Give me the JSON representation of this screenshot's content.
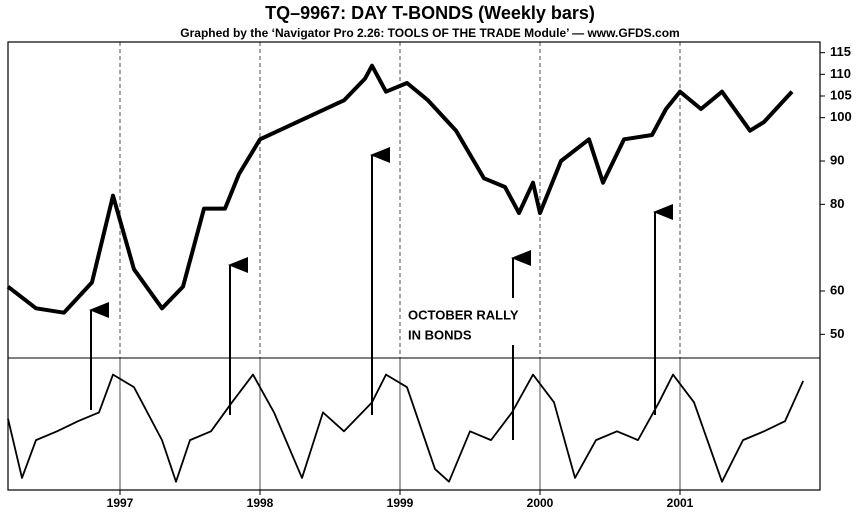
{
  "chart_data": {
    "type": "line",
    "title": "TQ–9967: DAY T-BONDS (Weekly bars)",
    "subtitle": "Graphed by the ‘Navigator Pro 2.26: TOOLS OF THE TRADE Module’ — www.GFDS.com",
    "annotation": [
      "OCTOBER RALLY",
      "IN BONDS"
    ],
    "xlim": [
      1996.2,
      2002.0
    ],
    "xticks": [
      1997,
      1998,
      1999,
      2000,
      2001
    ],
    "ylim": [
      45,
      117
    ],
    "yticks": [
      115,
      110,
      105,
      100,
      90,
      80,
      60,
      50
    ],
    "y2lim": [
      0,
      100
    ],
    "grid": true,
    "series": [
      {
        "color": "#000000",
        "x": [
          1996.2,
          1996.4,
          1996.6,
          1996.8,
          1996.95,
          1997.1,
          1997.3,
          1997.45,
          1997.6,
          1997.75,
          1997.85,
          1998.0,
          1998.2,
          1998.4,
          1998.6,
          1998.75,
          1998.8,
          1998.9,
          1999.05,
          1999.2,
          1999.4,
          1999.6,
          1999.75,
          1999.85,
          1999.95,
          2000.0,
          2000.15,
          2000.35,
          2000.45,
          2000.6,
          2000.8,
          2000.9,
          2001.0,
          2001.15,
          2001.3,
          2001.5,
          2001.6,
          2001.8
        ],
        "values": [
          61,
          56,
          55,
          62,
          82,
          65,
          56,
          61,
          79,
          79,
          87,
          95,
          98,
          101,
          104,
          109,
          112,
          106,
          108,
          104,
          97,
          86,
          84,
          78,
          85,
          78,
          90,
          95,
          85,
          95,
          96,
          102,
          106,
          102,
          106,
          97,
          99,
          106
        ]
      },
      {
        "color": "#000000",
        "axis": "y2",
        "x": [
          1996.2,
          1996.3,
          1996.4,
          1996.55,
          1996.7,
          1996.85,
          1996.95,
          1997.1,
          1997.3,
          1997.4,
          1997.5,
          1997.65,
          1997.8,
          1997.95,
          1998.1,
          1998.3,
          1998.45,
          1998.6,
          1998.8,
          1998.9,
          1999.05,
          1999.25,
          1999.35,
          1999.5,
          1999.65,
          1999.8,
          1999.95,
          2000.1,
          2000.25,
          2000.4,
          2000.55,
          2000.7,
          2000.85,
          2000.95,
          2001.1,
          2001.3,
          2001.45,
          2001.6,
          2001.75,
          2001.88
        ],
        "values": [
          55,
          8,
          38,
          45,
          53,
          60,
          90,
          80,
          38,
          5,
          38,
          45,
          68,
          90,
          60,
          8,
          60,
          45,
          68,
          90,
          80,
          15,
          5,
          45,
          38,
          60,
          90,
          68,
          8,
          38,
          45,
          38,
          68,
          90,
          68,
          5,
          38,
          45,
          53,
          85
        ]
      }
    ]
  }
}
